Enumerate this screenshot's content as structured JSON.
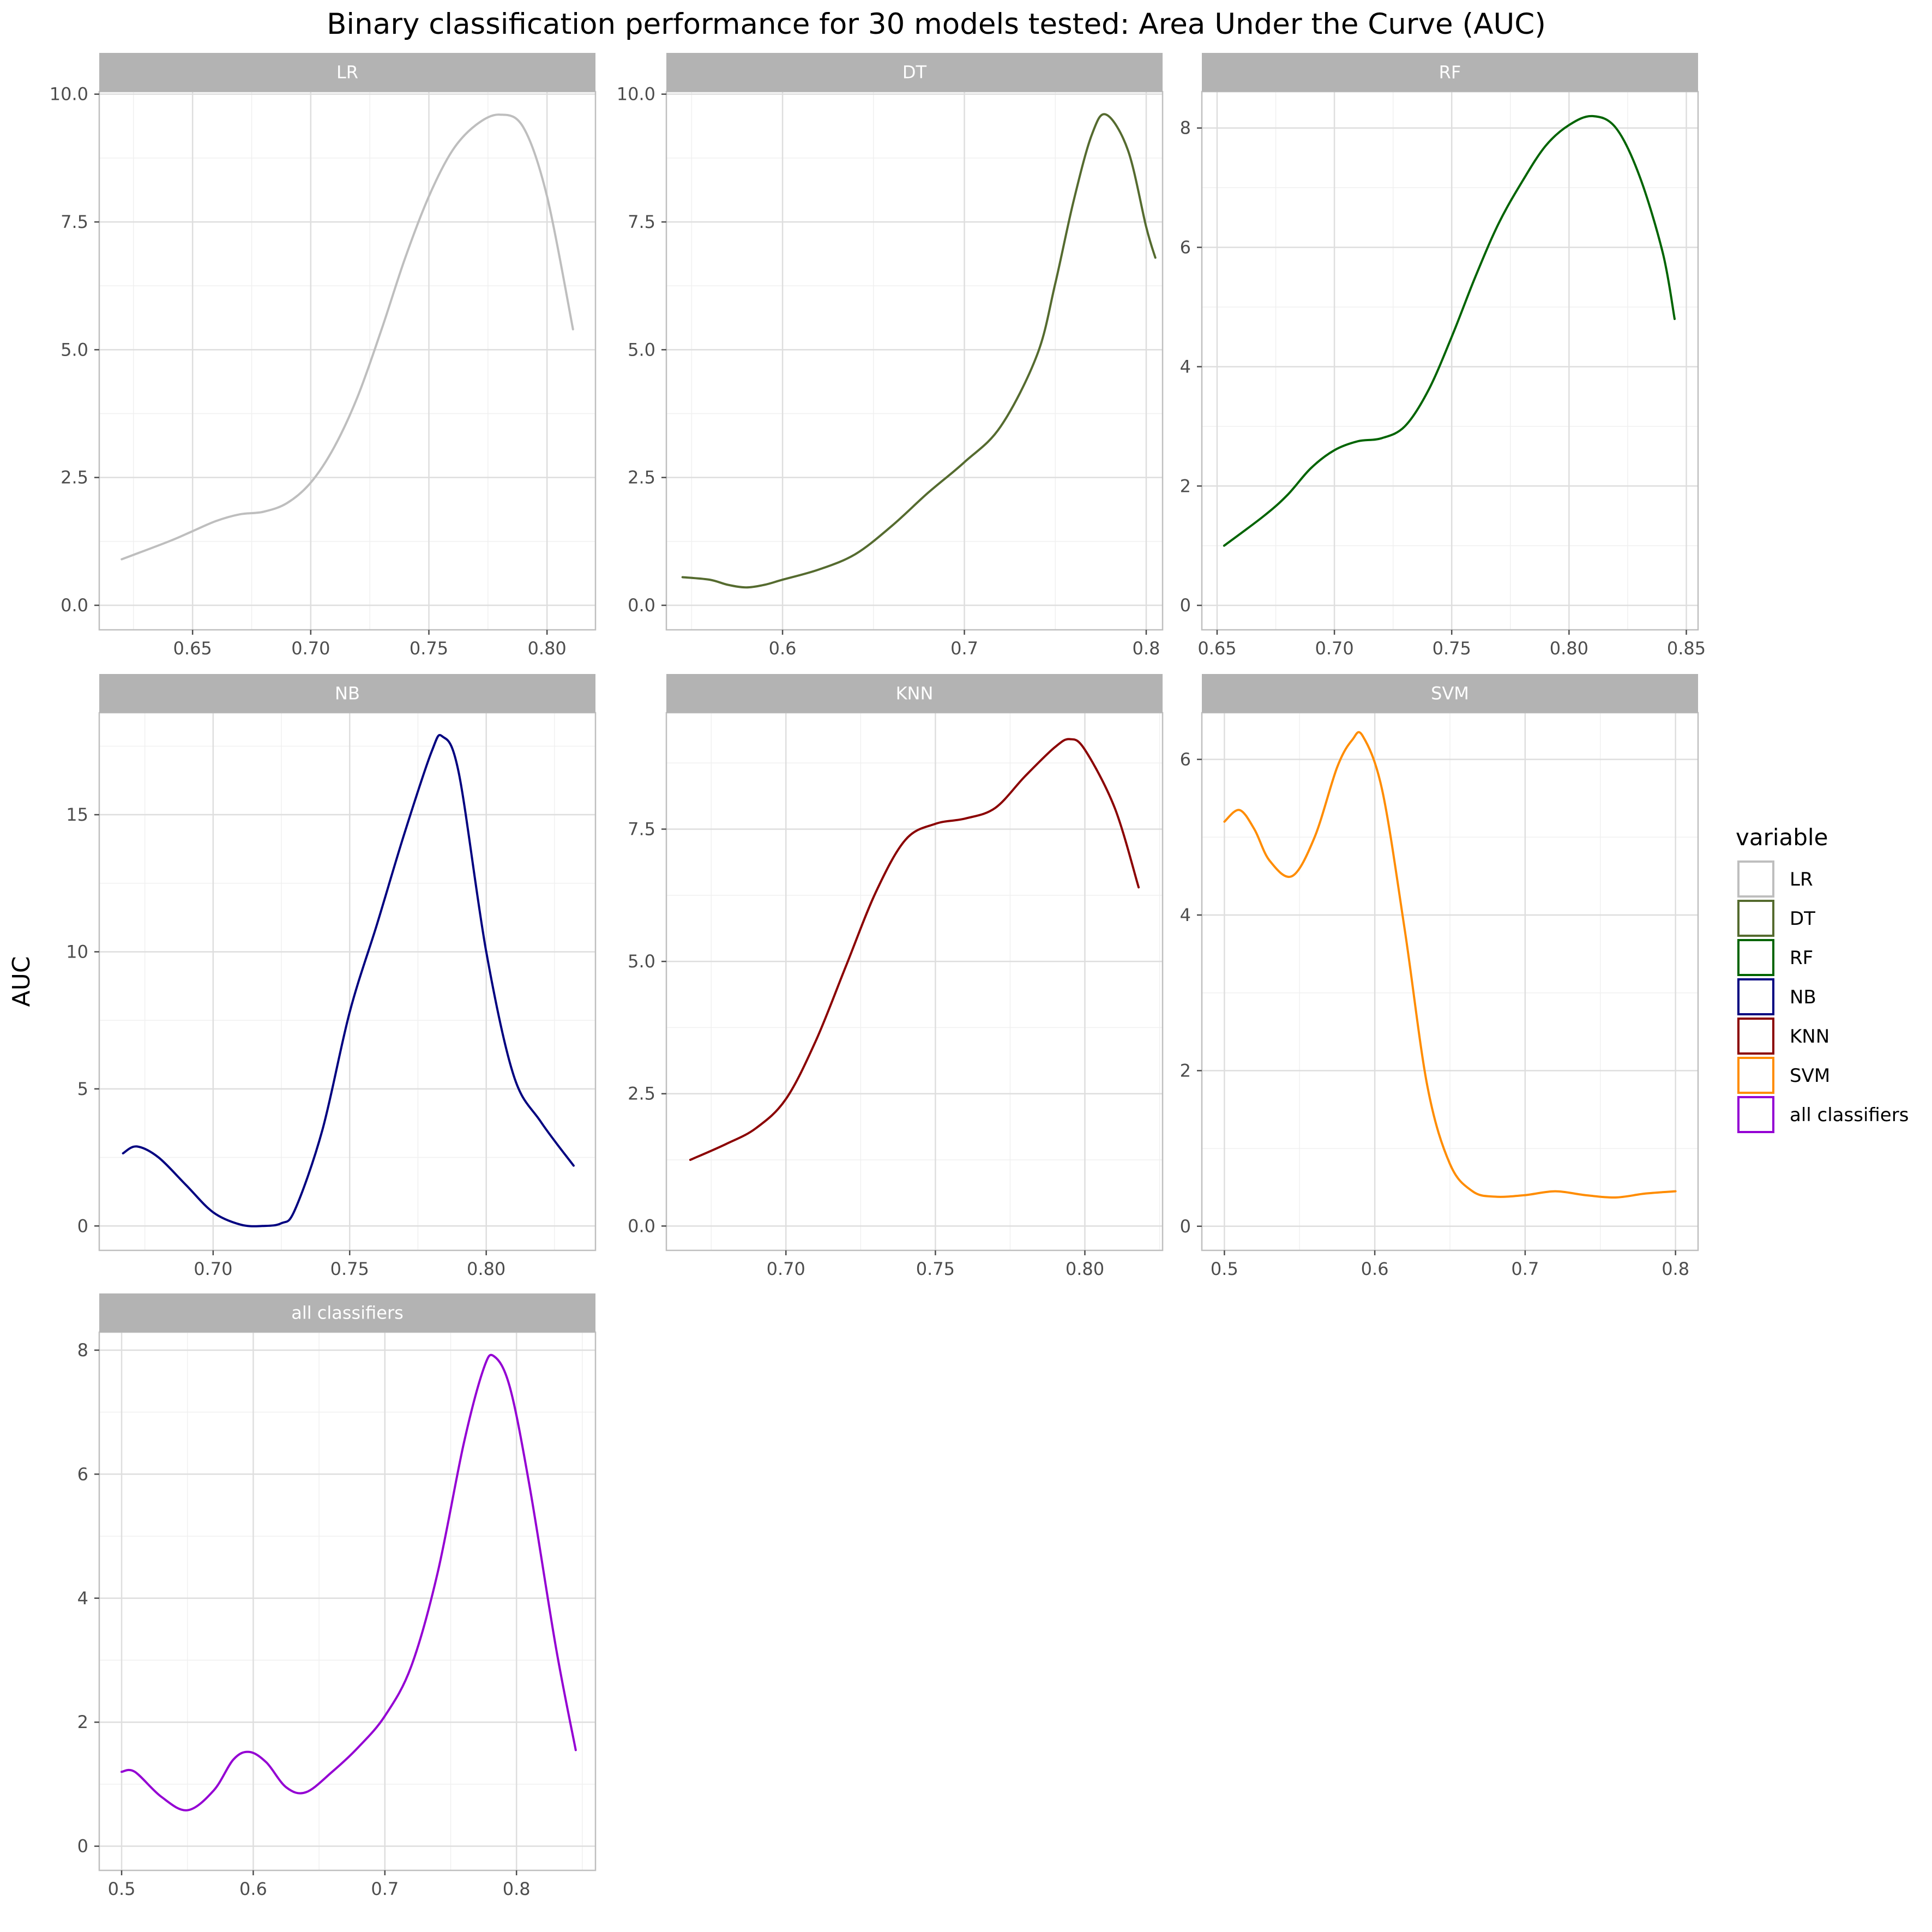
{
  "chart_data": {
    "type": "line",
    "title": "Binary classification performance for 30 models tested: Area Under the Curve (AUC)",
    "ylabel": "AUC",
    "xlabel": "",
    "grid": true,
    "legend": {
      "title": "variable",
      "placement": "right",
      "entries": [
        "LR",
        "DT",
        "RF",
        "NB",
        "KNN",
        "SVM",
        "all classifiers"
      ]
    },
    "panels": [
      {
        "name": "LR",
        "color": "#BEBEBE",
        "xlim": [
          0.6105,
          0.8205
        ],
        "ylim": [
          -0.48,
          10.05
        ],
        "xticks": [
          0.65,
          0.7,
          0.75,
          0.8
        ],
        "xtick_labels": [
          "0.65",
          "0.70",
          "0.75",
          "0.80"
        ],
        "yticks": [
          0,
          2.5,
          5,
          7.5,
          10
        ],
        "ytick_labels": [
          "0.0",
          "2.5",
          "5.0",
          "7.5",
          "10.0"
        ],
        "x": [
          0.62,
          0.64,
          0.65,
          0.66,
          0.67,
          0.68,
          0.69,
          0.7,
          0.71,
          0.72,
          0.73,
          0.74,
          0.75,
          0.76,
          0.77,
          0.78,
          0.79,
          0.8,
          0.811
        ],
        "y": [
          0.9,
          1.25,
          1.45,
          1.65,
          1.78,
          1.83,
          2.0,
          2.4,
          3.1,
          4.1,
          5.4,
          6.8,
          8.0,
          8.9,
          9.4,
          9.6,
          9.35,
          8.0,
          5.4
        ]
      },
      {
        "name": "DT",
        "color": "#556B2F",
        "xlim": [
          0.5361,
          0.809
        ],
        "ylim": [
          -0.48,
          10.05
        ],
        "xticks": [
          0.6,
          0.7,
          0.8
        ],
        "xtick_labels": [
          "0.6",
          "0.7",
          "0.8"
        ],
        "yticks": [
          0,
          2.5,
          5,
          7.5,
          10
        ],
        "ytick_labels": [
          "0.0",
          "2.5",
          "5.0",
          "7.5",
          "10.0"
        ],
        "x": [
          0.545,
          0.56,
          0.57,
          0.58,
          0.59,
          0.6,
          0.62,
          0.64,
          0.66,
          0.68,
          0.7,
          0.72,
          0.74,
          0.75,
          0.76,
          0.77,
          0.778,
          0.79,
          0.8,
          0.805
        ],
        "y": [
          0.55,
          0.5,
          0.4,
          0.35,
          0.4,
          0.5,
          0.7,
          1.0,
          1.55,
          2.2,
          2.8,
          3.5,
          4.9,
          6.3,
          7.9,
          9.2,
          9.6,
          8.9,
          7.4,
          6.8
        ]
      },
      {
        "name": "RF",
        "color": "#006400",
        "xlim": [
          0.6435,
          0.855
        ],
        "ylim": [
          -0.41,
          8.61
        ],
        "xticks": [
          0.65,
          0.7,
          0.75,
          0.8,
          0.85
        ],
        "xtick_labels": [
          "0.65",
          "0.70",
          "0.75",
          "0.80",
          "0.85"
        ],
        "yticks": [
          0,
          2,
          4,
          6,
          8
        ],
        "ytick_labels": [
          "0",
          "2",
          "4",
          "6",
          "8"
        ],
        "x": [
          0.653,
          0.67,
          0.68,
          0.69,
          0.7,
          0.71,
          0.72,
          0.73,
          0.74,
          0.75,
          0.76,
          0.77,
          0.78,
          0.79,
          0.8,
          0.81,
          0.82,
          0.83,
          0.84,
          0.845
        ],
        "y": [
          1.0,
          1.5,
          1.85,
          2.3,
          2.6,
          2.75,
          2.8,
          3.0,
          3.6,
          4.5,
          5.5,
          6.4,
          7.1,
          7.7,
          8.05,
          8.2,
          8.0,
          7.2,
          5.9,
          4.8
        ]
      },
      {
        "name": "NB",
        "color": "#000080",
        "xlim": [
          0.6583,
          0.84
        ],
        "ylim": [
          -0.89,
          18.72
        ],
        "xticks": [
          0.7,
          0.75,
          0.8
        ],
        "xtick_labels": [
          "0.70",
          "0.75",
          "0.80"
        ],
        "yticks": [
          0,
          5,
          10,
          15
        ],
        "ytick_labels": [
          "0",
          "5",
          "10",
          "15"
        ],
        "x": [
          0.667,
          0.672,
          0.68,
          0.69,
          0.7,
          0.71,
          0.718,
          0.725,
          0.73,
          0.74,
          0.75,
          0.76,
          0.77,
          0.78,
          0.784,
          0.79,
          0.8,
          0.81,
          0.82,
          0.832
        ],
        "y": [
          2.65,
          2.9,
          2.5,
          1.5,
          0.5,
          0.05,
          0.0,
          0.1,
          0.6,
          3.5,
          7.8,
          11.0,
          14.3,
          17.3,
          17.85,
          16.5,
          10.0,
          5.5,
          3.8,
          2.2
        ]
      },
      {
        "name": "KNN",
        "color": "#8B0000",
        "xlim": [
          0.66,
          0.826
        ],
        "ylim": [
          -0.46,
          9.7
        ],
        "xticks": [
          0.7,
          0.75,
          0.8
        ],
        "xtick_labels": [
          "0.70",
          "0.75",
          "0.80"
        ],
        "yticks": [
          0,
          2.5,
          5,
          7.5
        ],
        "ytick_labels": [
          "0.0",
          "2.5",
          "5.0",
          "7.5"
        ],
        "x": [
          0.668,
          0.68,
          0.69,
          0.7,
          0.71,
          0.72,
          0.73,
          0.74,
          0.75,
          0.76,
          0.77,
          0.78,
          0.79,
          0.795,
          0.8,
          0.81,
          0.818
        ],
        "y": [
          1.25,
          1.55,
          1.85,
          2.4,
          3.5,
          4.9,
          6.3,
          7.3,
          7.6,
          7.7,
          7.9,
          8.5,
          9.05,
          9.2,
          9.0,
          7.9,
          6.4
        ]
      },
      {
        "name": "SVM",
        "color": "#FF8C00",
        "xlim": [
          0.485,
          0.815
        ],
        "ylim": [
          -0.31,
          6.6
        ],
        "xticks": [
          0.5,
          0.6,
          0.7,
          0.8
        ],
        "xtick_labels": [
          "0.5",
          "0.6",
          "0.7",
          "0.8"
        ],
        "yticks": [
          0,
          2,
          4,
          6
        ],
        "ytick_labels": [
          "0",
          "2",
          "4",
          "6"
        ],
        "x": [
          0.5,
          0.51,
          0.52,
          0.53,
          0.545,
          0.56,
          0.575,
          0.585,
          0.592,
          0.605,
          0.62,
          0.635,
          0.65,
          0.665,
          0.68,
          0.7,
          0.72,
          0.74,
          0.76,
          0.78,
          0.8
        ],
        "y": [
          5.2,
          5.35,
          5.1,
          4.7,
          4.5,
          5.0,
          5.9,
          6.25,
          6.3,
          5.6,
          3.8,
          1.8,
          0.8,
          0.45,
          0.38,
          0.4,
          0.45,
          0.4,
          0.37,
          0.42,
          0.45
        ]
      },
      {
        "name": "all classifiers",
        "color": "#9400D3",
        "xlim": [
          0.483,
          0.86
        ],
        "ylim": [
          -0.39,
          8.29
        ],
        "xticks": [
          0.5,
          0.6,
          0.7,
          0.8
        ],
        "xtick_labels": [
          "0.5",
          "0.6",
          "0.7",
          "0.8"
        ],
        "yticks": [
          0,
          2,
          4,
          6,
          8
        ],
        "ytick_labels": [
          "0",
          "2",
          "4",
          "6",
          "8"
        ],
        "x": [
          0.5,
          0.51,
          0.53,
          0.55,
          0.57,
          0.585,
          0.597,
          0.61,
          0.625,
          0.64,
          0.66,
          0.68,
          0.7,
          0.72,
          0.74,
          0.76,
          0.775,
          0.783,
          0.795,
          0.81,
          0.83,
          0.845
        ],
        "y": [
          1.2,
          1.2,
          0.8,
          0.58,
          0.9,
          1.4,
          1.52,
          1.35,
          0.95,
          0.87,
          1.2,
          1.6,
          2.1,
          2.9,
          4.4,
          6.5,
          7.7,
          7.9,
          7.4,
          5.8,
          3.2,
          1.55
        ]
      }
    ]
  }
}
